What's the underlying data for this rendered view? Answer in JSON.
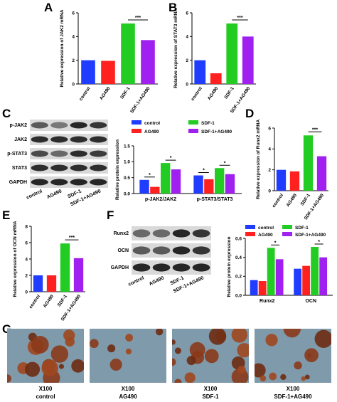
{
  "panels": [
    "A",
    "B",
    "C",
    "D",
    "E",
    "F",
    "G"
  ],
  "blot_c": {
    "rows": [
      "p-JAK2",
      "JAK2",
      "p-STAT3",
      "STAT3",
      "GAPDH"
    ],
    "lanes": [
      "control",
      "AG490",
      "SDF-1",
      "SDF-1+AG490"
    ]
  },
  "blot_f": {
    "rows": [
      "Runx2",
      "OCN",
      "GAPDH"
    ],
    "lanes": [
      "control",
      "AG490",
      "SDF-1",
      "SDF-1+AG490"
    ]
  },
  "images": [
    {
      "magnification": "X100",
      "label": "control"
    },
    {
      "magnification": "X100",
      "label": "AG490"
    },
    {
      "magnification": "X100",
      "label": "SDF-1"
    },
    {
      "magnification": "X100",
      "label": "SDF-1+AG490"
    }
  ],
  "chart_data": [
    {
      "type": "bar",
      "ylabel": "Relative expression of JAK2 mRNA",
      "categories": [
        "control",
        "AG490",
        "SDF-1",
        "SDF-1+AG490"
      ],
      "values": [
        2.0,
        1.95,
        5.1,
        3.7
      ],
      "colors": [
        "#1f3cff",
        "#ff2020",
        "#22cc22",
        "#a020f0"
      ],
      "ylim": [
        0,
        6
      ],
      "yticks": [
        0,
        2,
        4,
        6
      ],
      "annotations": [
        "***"
      ]
    },
    {
      "type": "bar",
      "ylabel": "Relative expression of STAT3 mRNA",
      "categories": [
        "control",
        "AG490",
        "SDF-1",
        "SDF-1+AG490"
      ],
      "values": [
        2.0,
        0.9,
        5.1,
        4.0
      ],
      "colors": [
        "#1f3cff",
        "#ff2020",
        "#22cc22",
        "#a020f0"
      ],
      "ylim": [
        0,
        6
      ],
      "yticks": [
        0,
        2,
        4,
        6
      ],
      "annotations": [
        "***"
      ]
    },
    {
      "type": "grouped_bar",
      "ylabel": "Relative protein expression",
      "categories": [
        "p-JAK2/JAK2",
        "p-STAT3/STAT3"
      ],
      "series": [
        {
          "name": "control",
          "color": "#1f3cff",
          "values": [
            0.43,
            0.57
          ]
        },
        {
          "name": "AG490",
          "color": "#ff2020",
          "values": [
            0.21,
            0.45
          ]
        },
        {
          "name": "SDF-1",
          "color": "#22cc22",
          "values": [
            0.96,
            0.8
          ]
        },
        {
          "name": "SDF-1+AG490",
          "color": "#a020f0",
          "values": [
            0.76,
            0.61
          ]
        }
      ],
      "ylim": [
        0,
        1.5
      ],
      "yticks": [
        {
          "value": 0,
          "label": "0.0"
        },
        0.5,
        {
          "value": 1,
          "label": "1.0"
        },
        1.5
      ],
      "annotations": [
        "*",
        "*",
        "*",
        "*"
      ]
    },
    {
      "type": "bar",
      "ylabel": "Relative expression of Runx2 mRNA",
      "categories": [
        "control",
        "AG490",
        "SDF-1",
        "SDF-1+AG490"
      ],
      "values": [
        2.0,
        1.85,
        5.3,
        3.3
      ],
      "colors": [
        "#1f3cff",
        "#ff2020",
        "#22cc22",
        "#a020f0"
      ],
      "ylim": [
        0,
        6
      ],
      "yticks": [
        0,
        2,
        4,
        6
      ],
      "annotations": [
        "***"
      ]
    },
    {
      "type": "bar",
      "ylabel": "Relative expression of OCN mRNA",
      "categories": [
        "control",
        "AG490",
        "SDF-1",
        "SDF-1+AG490"
      ],
      "values": [
        2.0,
        2.0,
        5.9,
        4.1
      ],
      "colors": [
        "#1f3cff",
        "#ff2020",
        "#22cc22",
        "#a020f0"
      ],
      "ylim": [
        0,
        8
      ],
      "yticks": [
        0,
        2,
        4,
        6,
        8
      ],
      "annotations": [
        "***"
      ]
    },
    {
      "type": "grouped_bar",
      "ylabel": "Relative protein expression",
      "categories": [
        "Runx2",
        "OCN"
      ],
      "series": [
        {
          "name": "control",
          "color": "#1f3cff",
          "values": [
            0.16,
            0.28
          ]
        },
        {
          "name": "AG490",
          "color": "#ff2020",
          "values": [
            0.15,
            0.31
          ]
        },
        {
          "name": "SDF-1",
          "color": "#22cc22",
          "values": [
            0.5,
            0.51
          ]
        },
        {
          "name": "SDF-1+AG490",
          "color": "#a020f0",
          "values": [
            0.38,
            0.4
          ]
        }
      ],
      "ylim": [
        0,
        0.6
      ],
      "yticks": [
        {
          "value": 0,
          "label": "0.0"
        },
        0.2,
        0.4,
        0.6
      ],
      "annotations": [
        "*",
        "*"
      ]
    }
  ]
}
